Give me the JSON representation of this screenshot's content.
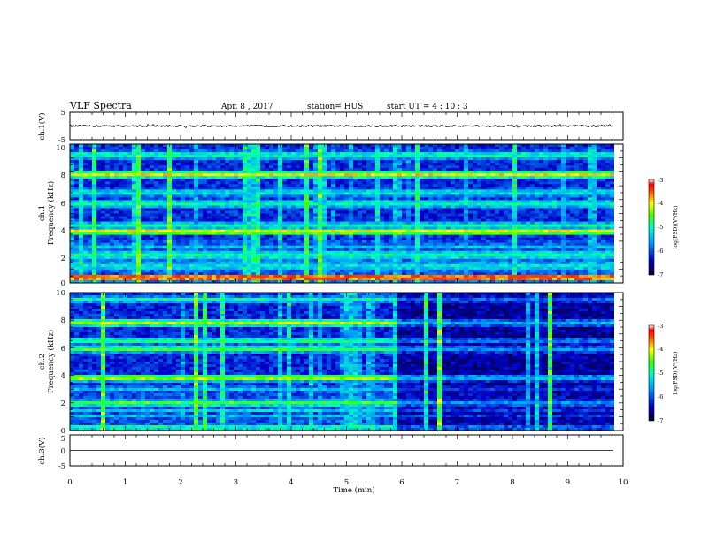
{
  "header": {
    "title": "VLF Spectra",
    "date": "Apr. 8  , 2017",
    "station": "station= HUS",
    "start_ut": "start  UT =   4 : 10 : 3"
  },
  "colors": {
    "background": "#000028",
    "line": "#000000"
  },
  "chart_data": [
    {
      "type": "line",
      "title": "ch.1(V)",
      "ylabel": "ch.1(V)",
      "ylim": [
        -5,
        5
      ],
      "yticks": [
        "5",
        "-5"
      ],
      "trace_level": 0,
      "trace_noise": 0.4
    },
    {
      "type": "heatmap",
      "ylabel_line1": "ch.1",
      "ylabel_line2": "Frequency  (kHz)",
      "ylim": [
        0,
        10
      ],
      "yticks": [
        "0",
        "2",
        "4",
        "6",
        "8",
        "10"
      ],
      "xlim": [
        0,
        10
      ],
      "colorbar": {
        "label": "log(PSD)(V²/Hz)",
        "range": [
          -7,
          -3
        ],
        "ticks": [
          "-3",
          "-4",
          "-5",
          "-6",
          "-7"
        ]
      },
      "bands_khz": [
        {
          "f": 0.3,
          "w": 0.2,
          "level": 0.85
        },
        {
          "f": 0.5,
          "w": 0.1,
          "level": 0.9
        },
        {
          "f": 1.2,
          "w": 0.5,
          "level": 0.45
        },
        {
          "f": 2.0,
          "w": 0.5,
          "level": 0.5
        },
        {
          "f": 2.6,
          "w": 0.3,
          "level": 0.4
        },
        {
          "f": 3.7,
          "w": 0.3,
          "level": 0.75
        },
        {
          "f": 4.2,
          "w": 0.2,
          "level": 0.55
        },
        {
          "f": 5.7,
          "w": 0.4,
          "level": 0.5
        },
        {
          "f": 6.5,
          "w": 0.4,
          "level": 0.45
        },
        {
          "f": 7.8,
          "w": 0.3,
          "level": 0.75
        },
        {
          "f": 9.2,
          "w": 0.4,
          "level": 0.5
        }
      ]
    },
    {
      "type": "heatmap",
      "ylabel_line1": "ch.2",
      "ylabel_line2": "Frequency  (kHz)",
      "ylim": [
        0,
        10
      ],
      "yticks": [
        "0",
        "2",
        "4",
        "6",
        "8",
        "10"
      ],
      "xlim": [
        0,
        10
      ],
      "colorbar": {
        "label": "log(PSD)(V²/Hz)",
        "range": [
          -7,
          -3
        ],
        "ticks": [
          "-3",
          "-4",
          "-5",
          "-6",
          "-7"
        ]
      },
      "bands_khz": [
        {
          "f": 0.2,
          "w": 0.2,
          "level": 0.6
        },
        {
          "f": 1.0,
          "w": 0.1,
          "level": 0.55
        },
        {
          "f": 1.4,
          "w": 0.1,
          "level": 0.5
        },
        {
          "f": 2.0,
          "w": 0.3,
          "level": 0.6
        },
        {
          "f": 3.0,
          "w": 0.3,
          "level": 0.4
        },
        {
          "f": 3.8,
          "w": 0.3,
          "level": 0.7
        },
        {
          "f": 5.9,
          "w": 0.3,
          "level": 0.6
        },
        {
          "f": 6.5,
          "w": 0.3,
          "level": 0.55
        },
        {
          "f": 7.8,
          "w": 0.3,
          "level": 0.7
        },
        {
          "f": 9.5,
          "w": 0.3,
          "level": 0.5
        }
      ]
    },
    {
      "type": "line",
      "title": "ch.3(V)",
      "ylabel": "ch.3(V)",
      "ylim": [
        -5,
        5
      ],
      "yticks": [
        "5",
        "0",
        "-5"
      ],
      "trace_level": 0,
      "trace_noise": 0
    }
  ],
  "xaxis": {
    "label": "Time  (min)",
    "xlim": [
      0,
      10
    ],
    "ticks": [
      "0",
      "1",
      "2",
      "3",
      "4",
      "5",
      "6",
      "7",
      "8",
      "9",
      "10"
    ]
  }
}
